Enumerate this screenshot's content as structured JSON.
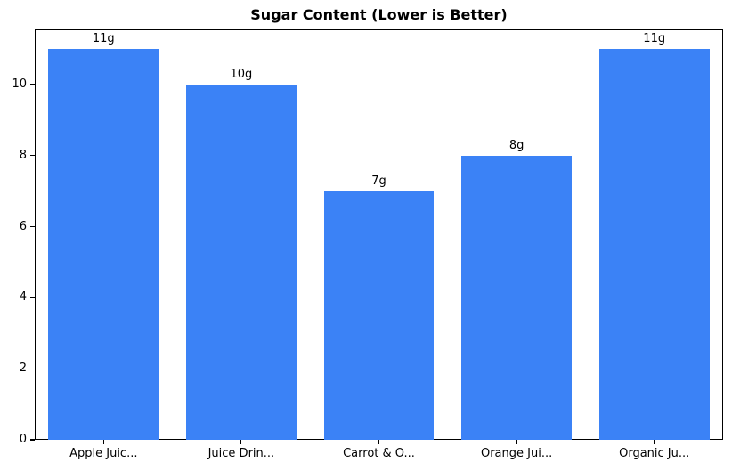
{
  "chart_data": {
    "type": "bar",
    "title": "Sugar Content (Lower is Better)",
    "categories": [
      "Apple Juic...",
      "Juice Drin...",
      "Carrot & O...",
      "Orange Jui...",
      "Organic Ju..."
    ],
    "values": [
      11,
      10,
      7,
      8,
      11
    ],
    "bar_labels": [
      "11g",
      "10g",
      "7g",
      "8g",
      "11g"
    ],
    "yticks": [
      0,
      2,
      4,
      6,
      8,
      10
    ],
    "ylim": [
      0,
      11.55
    ],
    "xlabel": "",
    "ylabel": "",
    "grid": false,
    "legend_position": "none",
    "bar_color": "#3b82f6",
    "text_color": "#000000",
    "background_color": "#ffffff"
  }
}
